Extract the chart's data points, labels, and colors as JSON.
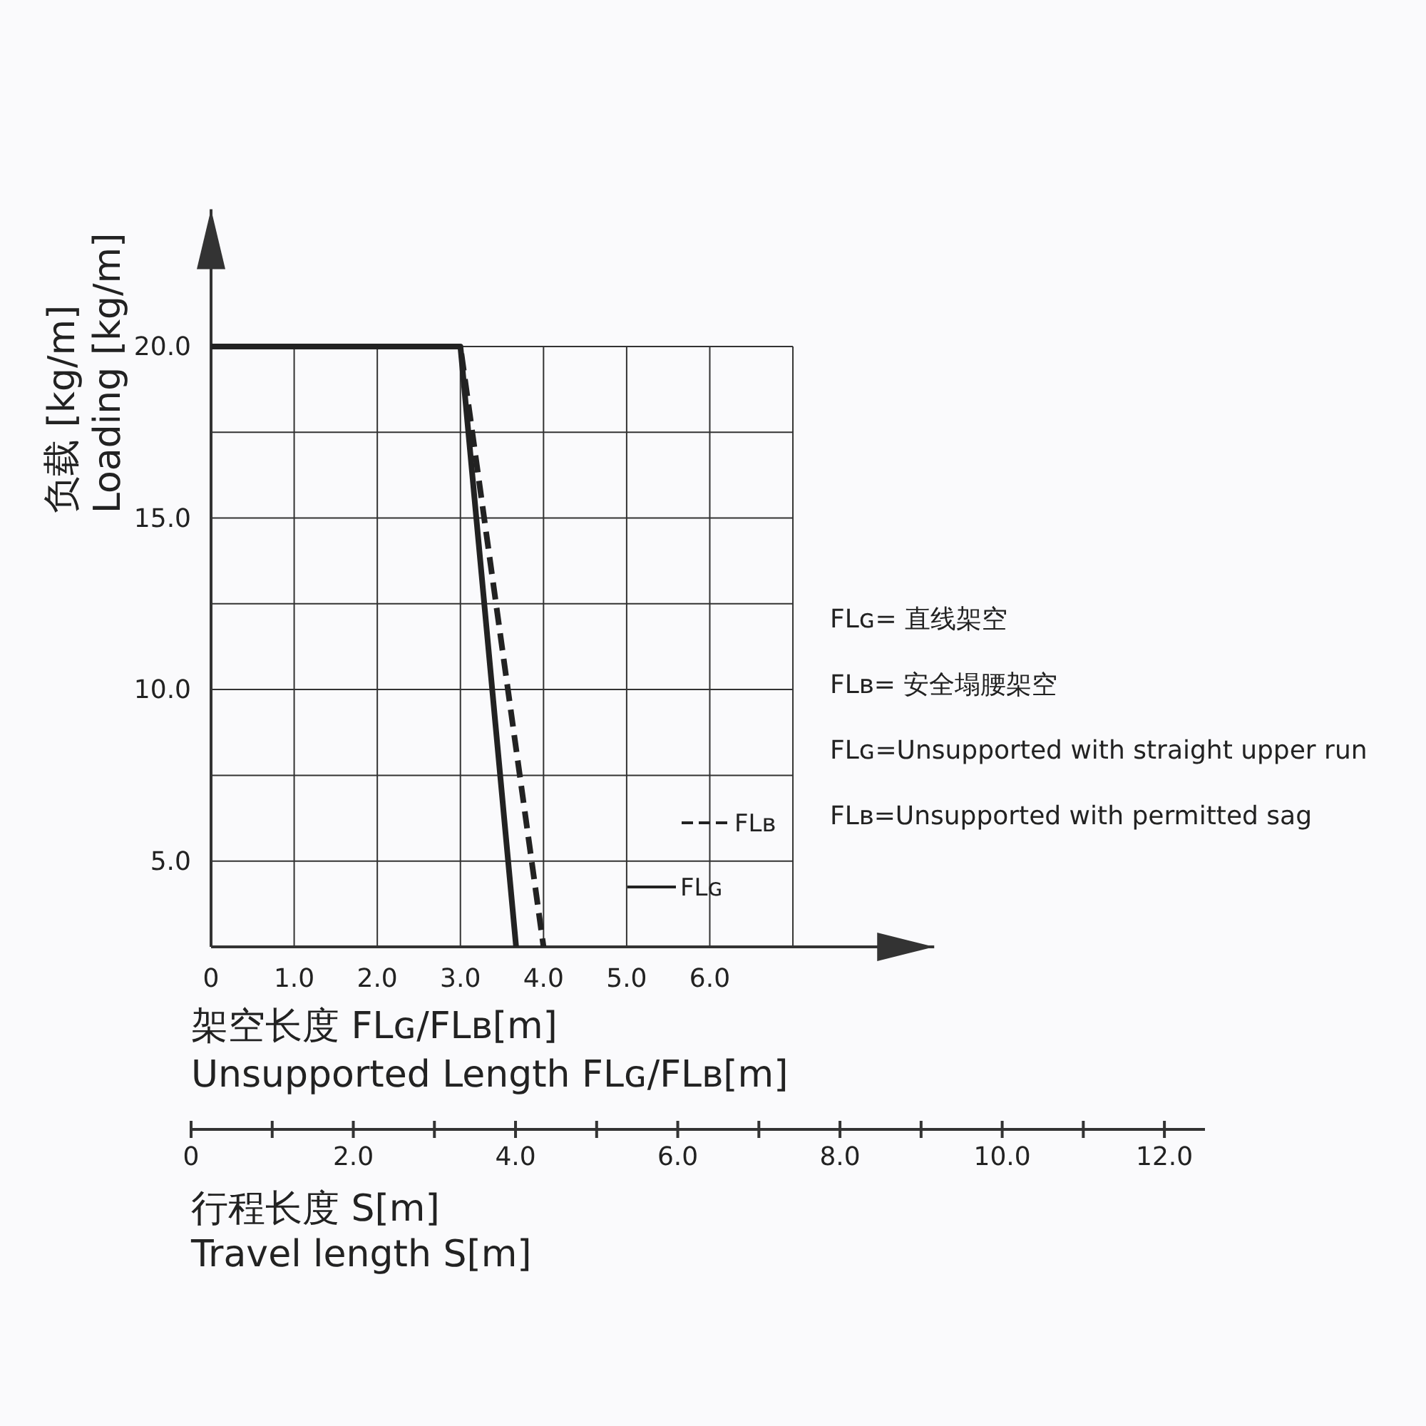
{
  "chart_data": {
    "type": "line",
    "xlabel": "架空长度 FLɢ/FLʙ[m]\nUnsupported Length FLɢ/FLʙ[m]",
    "ylabel": "负载  [kg/m]\nLoading [kg/m]",
    "x2label": "行程长度 S[m]\nTravel length S[m]",
    "xlim": [
      0,
      8.7
    ],
    "xticks": [
      {
        "value": 0,
        "label": "0"
      },
      {
        "value": 1,
        "label": "1.0"
      },
      {
        "value": 2,
        "label": "2.0"
      },
      {
        "value": 3,
        "label": "3.0"
      },
      {
        "value": 4,
        "label": "4.0"
      },
      {
        "value": 5,
        "label": "5.0"
      },
      {
        "value": 6,
        "label": "6.0"
      },
      {
        "value": 7,
        "label": null
      }
    ],
    "ylim": [
      2.5,
      24
    ],
    "yticks": [
      {
        "value": 5,
        "label": "5.0"
      },
      {
        "value": 7.5,
        "label": null
      },
      {
        "value": 10,
        "label": "10.0"
      },
      {
        "value": 12.5,
        "label": null
      },
      {
        "value": 15,
        "label": "15.0"
      },
      {
        "value": 17.5,
        "label": null
      },
      {
        "value": 20,
        "label": "20.0"
      }
    ],
    "x2lim": [
      0,
      12.5
    ],
    "x2ticks": [
      {
        "value": 0,
        "label": "0"
      },
      {
        "value": 2,
        "label": "2.0"
      },
      {
        "value": 4,
        "label": "4.0"
      },
      {
        "value": 6,
        "label": "6.0"
      },
      {
        "value": 8,
        "label": "8.0"
      },
      {
        "value": 10,
        "label": "10.0"
      },
      {
        "value": 12,
        "label": "12.0"
      }
    ],
    "grid": true,
    "legend": "bottom right",
    "series": [
      {
        "name": "FLɢ",
        "color": "#222222",
        "line_style": "solid",
        "x": [
          0,
          3,
          3.67
        ],
        "values": [
          20,
          20,
          2.5
        ]
      },
      {
        "name": "FLʙ",
        "color": "#222222",
        "line_style": "dashed",
        "x": [
          0,
          3,
          4.0
        ],
        "values": [
          20,
          20,
          2.5
        ]
      }
    ],
    "annotations": [
      "FLɢ= 直线架空",
      "FLʙ= 安全塌腰架空",
      "FLɢ=Unsupported with straight upper run",
      "FLʙ=Unsupported with permitted sag"
    ]
  }
}
